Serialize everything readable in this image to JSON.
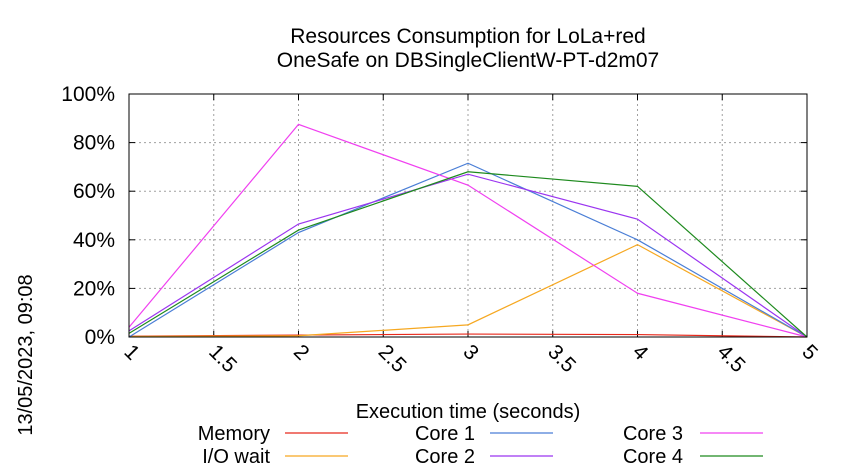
{
  "side_stamp": "13/05/2023, 09:08",
  "chart_data": {
    "type": "line",
    "title": [
      "Resources Consumption for LoLa+red",
      "OneSafe on DBSingleClientW-PT-d2m07"
    ],
    "xlabel": "Execution time (seconds)",
    "ylabel": "",
    "xlim": [
      1,
      5
    ],
    "ylim": [
      0,
      100
    ],
    "x_ticks": [
      1,
      1.5,
      2,
      2.5,
      3,
      3.5,
      4,
      4.5,
      5
    ],
    "x_tick_labels": [
      "1",
      "1.5",
      "2",
      "2.5",
      "3",
      "3.5",
      "4",
      "4.5",
      "5"
    ],
    "y_ticks": [
      0,
      20,
      40,
      60,
      80,
      100
    ],
    "y_tick_labels": [
      "0%",
      "20%",
      "40%",
      "60%",
      "80%",
      "100%"
    ],
    "grid": true,
    "legend_position": "bottom",
    "x": [
      1,
      2,
      3,
      4,
      5
    ],
    "series": [
      {
        "name": "Memory",
        "color": "#e8291c",
        "values": [
          0.3,
          0.8,
          1.2,
          1.0,
          0
        ]
      },
      {
        "name": "I/O wait",
        "color": "#f6a821",
        "values": [
          0.2,
          0.5,
          5.0,
          38.0,
          0
        ]
      },
      {
        "name": "Core 1",
        "color": "#4a7ed6",
        "values": [
          0,
          43,
          71.5,
          40,
          0
        ]
      },
      {
        "name": "Core 2",
        "color": "#9b35f0",
        "values": [
          2.5,
          46.5,
          67,
          48.5,
          0
        ]
      },
      {
        "name": "Core 3",
        "color": "#f040f0",
        "values": [
          4,
          87.5,
          62.5,
          18,
          0
        ]
      },
      {
        "name": "Core 4",
        "color": "#1e8a1e",
        "values": [
          1.5,
          44,
          68,
          62,
          0
        ]
      }
    ]
  }
}
